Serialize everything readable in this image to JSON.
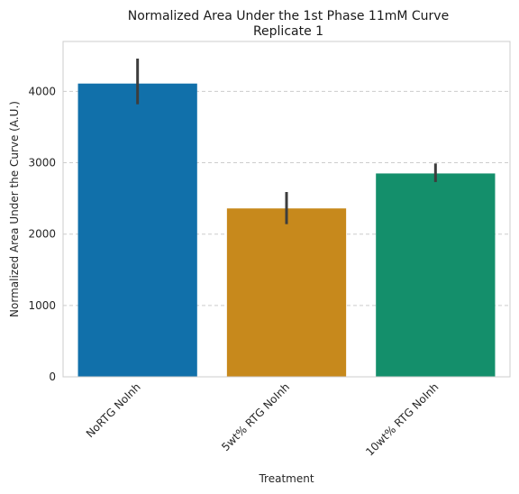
{
  "chart_data": {
    "type": "bar",
    "title": "Normalized Area Under the 1st Phase 11mM Curve",
    "subtitle": "Replicate 1",
    "xlabel": "Treatment",
    "ylabel": "Normalized Area Under the Curve (A.U.)",
    "categories": [
      "NoRTG NoInh",
      "5wt% RTG NoInh",
      "10wt% RTG NoInh"
    ],
    "values": [
      4110,
      2360,
      2850
    ],
    "error_low": [
      3820,
      2140,
      2730
    ],
    "error_high": [
      4460,
      2590,
      2990
    ],
    "colors": [
      "#1170aa",
      "#c7891c",
      "#148f6b"
    ],
    "yticks": [
      0,
      1000,
      2000,
      3000,
      4000
    ],
    "ylim": [
      0,
      4700
    ],
    "grid": "horizontal dashed",
    "legend": "none"
  }
}
